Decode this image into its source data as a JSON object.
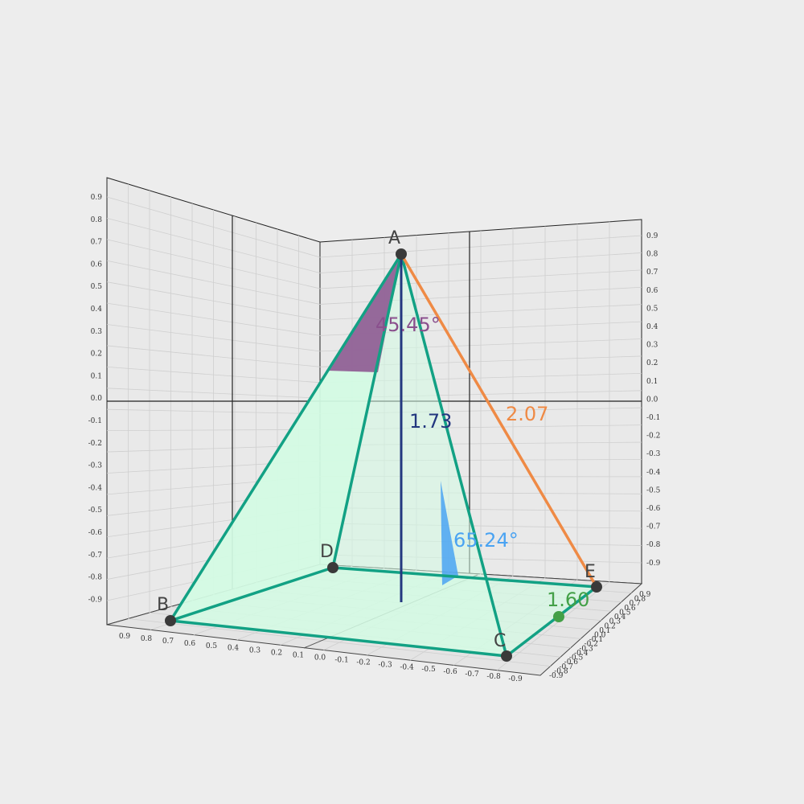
{
  "vertices": {
    "A": "A",
    "B": "B",
    "C": "C",
    "D": "D",
    "E": "E"
  },
  "measures": {
    "apex_angle": "45.45°",
    "height": "1.73",
    "slant_edge": "2.07",
    "edge_ce": "1.60",
    "face_angle": "65.24°"
  },
  "colors": {
    "background": "#ededed",
    "pyramid_edges": "#12a184",
    "pyramid_fill": "#d4fbe4",
    "apex_angle": "#8a4f8d",
    "height": "#23377f",
    "slant_edge": "#ef8a45",
    "edge_ce": "#43a047",
    "face_angle": "#4aa3f2",
    "vertex": "#3a3a3a"
  },
  "axes": {
    "left_wall": [
      "0.9",
      "0.8",
      "0.7",
      "0.6",
      "0.5",
      "0.4",
      "0.3",
      "0.2",
      "0.1",
      "0.0",
      "-0.1",
      "-0.2",
      "-0.3",
      "-0.4",
      "-0.5",
      "-0.6",
      "-0.7",
      "-0.8",
      "-0.9"
    ],
    "right_wall": [
      "0.9",
      "0.8",
      "0.7",
      "0.6",
      "0.5",
      "0.4",
      "0.3",
      "0.2",
      "0.1",
      "0.0",
      "-0.1",
      "-0.2",
      "-0.3",
      "-0.4",
      "-0.5",
      "-0.6",
      "-0.7",
      "-0.8",
      "-0.9"
    ],
    "floor_front": [
      "0.9",
      "0.8",
      "0.7",
      "0.6",
      "0.5",
      "0.4",
      "0.3",
      "0.2",
      "0.1",
      "0.0",
      "-0.1",
      "-0.2",
      "-0.3",
      "-0.4",
      "-0.5",
      "-0.6",
      "-0.7",
      "-0.8",
      "-0.9"
    ],
    "floor_right": [
      "0.9",
      "0.8",
      "0.7",
      "0.6",
      "0.5",
      "0.4",
      "0.3",
      "0.2",
      "0.1",
      "0.0",
      "-0.1",
      "-0.2",
      "-0.3",
      "-0.4",
      "-0.5",
      "-0.6",
      "-0.7",
      "-0.8",
      "-0.9"
    ]
  }
}
